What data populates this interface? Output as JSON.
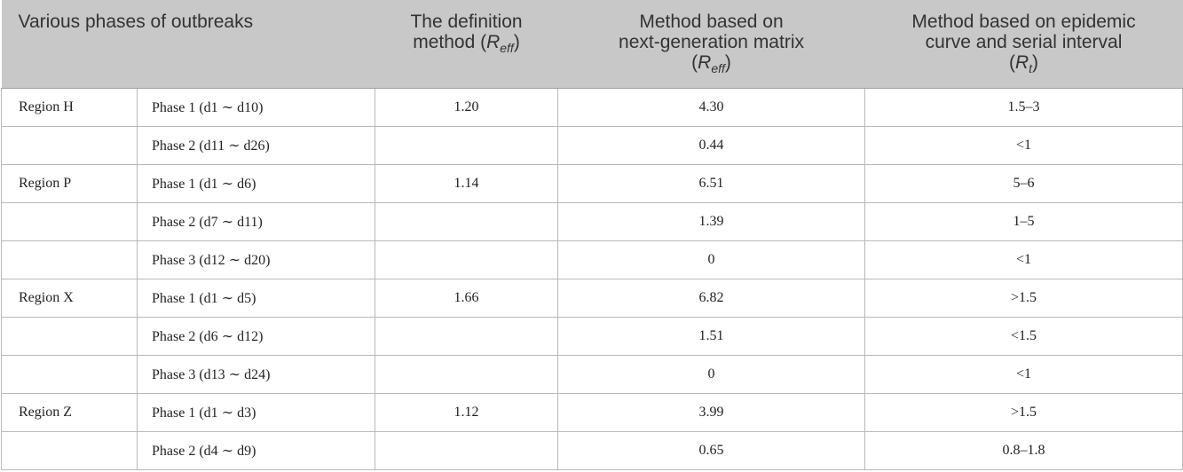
{
  "header": {
    "col1": "Various phases of outbreaks",
    "col3_line1": "The definition",
    "col3_line2": "method (",
    "col3_var": "R",
    "col3_sub": "eff",
    "col3_close": ")",
    "col4_line1": "Method based on",
    "col4_line2": "next-generation matrix",
    "col4_open": "(",
    "col4_var": "R",
    "col4_sub": "eff",
    "col4_close": ")",
    "col5_line1": "Method based on epidemic",
    "col5_line2": "curve and serial interval",
    "col5_open": "(",
    "col5_var": "R",
    "col5_sub": "t",
    "col5_close": ")"
  },
  "rows": [
    {
      "region": "Region H",
      "phase": "Phase 1 (d1 ∼ d10)",
      "definition": "1.20",
      "ngm": "4.30",
      "epi": "1.5–3"
    },
    {
      "region": "",
      "phase": "Phase 2 (d11 ∼ d26)",
      "definition": "",
      "ngm": "0.44",
      "epi": "<1"
    },
    {
      "region": "Region P",
      "phase": "Phase 1 (d1 ∼ d6)",
      "definition": "1.14",
      "ngm": "6.51",
      "epi": "5–6"
    },
    {
      "region": "",
      "phase": "Phase 2 (d7 ∼ d11)",
      "definition": "",
      "ngm": "1.39",
      "epi": "1–5"
    },
    {
      "region": "",
      "phase": "Phase 3 (d12 ∼ d20)",
      "definition": "",
      "ngm": "0",
      "epi": "<1"
    },
    {
      "region": "Region X",
      "phase": "Phase 1 (d1 ∼ d5)",
      "definition": "1.66",
      "ngm": "6.82",
      "epi": ">1.5"
    },
    {
      "region": "",
      "phase": "Phase 2 (d6 ∼ d12)",
      "definition": "",
      "ngm": "1.51",
      "epi": "<1.5"
    },
    {
      "region": "",
      "phase": "Phase 3 (d13 ∼ d24)",
      "definition": "",
      "ngm": "0",
      "epi": "<1"
    },
    {
      "region": "Region Z",
      "phase": "Phase 1 (d1 ∼ d3)",
      "definition": "1.12",
      "ngm": "3.99",
      "epi": ">1.5"
    },
    {
      "region": "",
      "phase": "Phase 2 (d4 ∼ d9)",
      "definition": "",
      "ngm": "0.65",
      "epi": "0.8–1.8"
    }
  ]
}
